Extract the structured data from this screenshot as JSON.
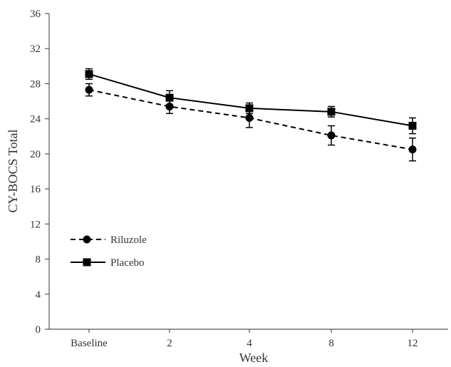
{
  "chart_data": {
    "type": "line",
    "xlabel": "Week",
    "ylabel": "CY-BOCS Total",
    "ylim": [
      0,
      36
    ],
    "yticks": [
      0,
      4,
      8,
      12,
      16,
      20,
      24,
      28,
      32,
      36
    ],
    "categories": [
      "Baseline",
      "2",
      "4",
      "8",
      "12"
    ],
    "grid": false,
    "legend_position": "left",
    "series": [
      {
        "name": "Riluzole",
        "marker": "circle",
        "line_style": "dashed",
        "color": "#000000",
        "values": [
          27.3,
          25.4,
          24.1,
          22.1,
          20.5
        ],
        "error": [
          0.7,
          0.8,
          1.1,
          1.1,
          1.3
        ]
      },
      {
        "name": "Placebo",
        "marker": "square",
        "line_style": "solid",
        "color": "#000000",
        "values": [
          29.1,
          26.4,
          25.2,
          24.8,
          23.2
        ],
        "error": [
          0.6,
          0.8,
          0.6,
          0.6,
          0.9
        ]
      }
    ]
  }
}
